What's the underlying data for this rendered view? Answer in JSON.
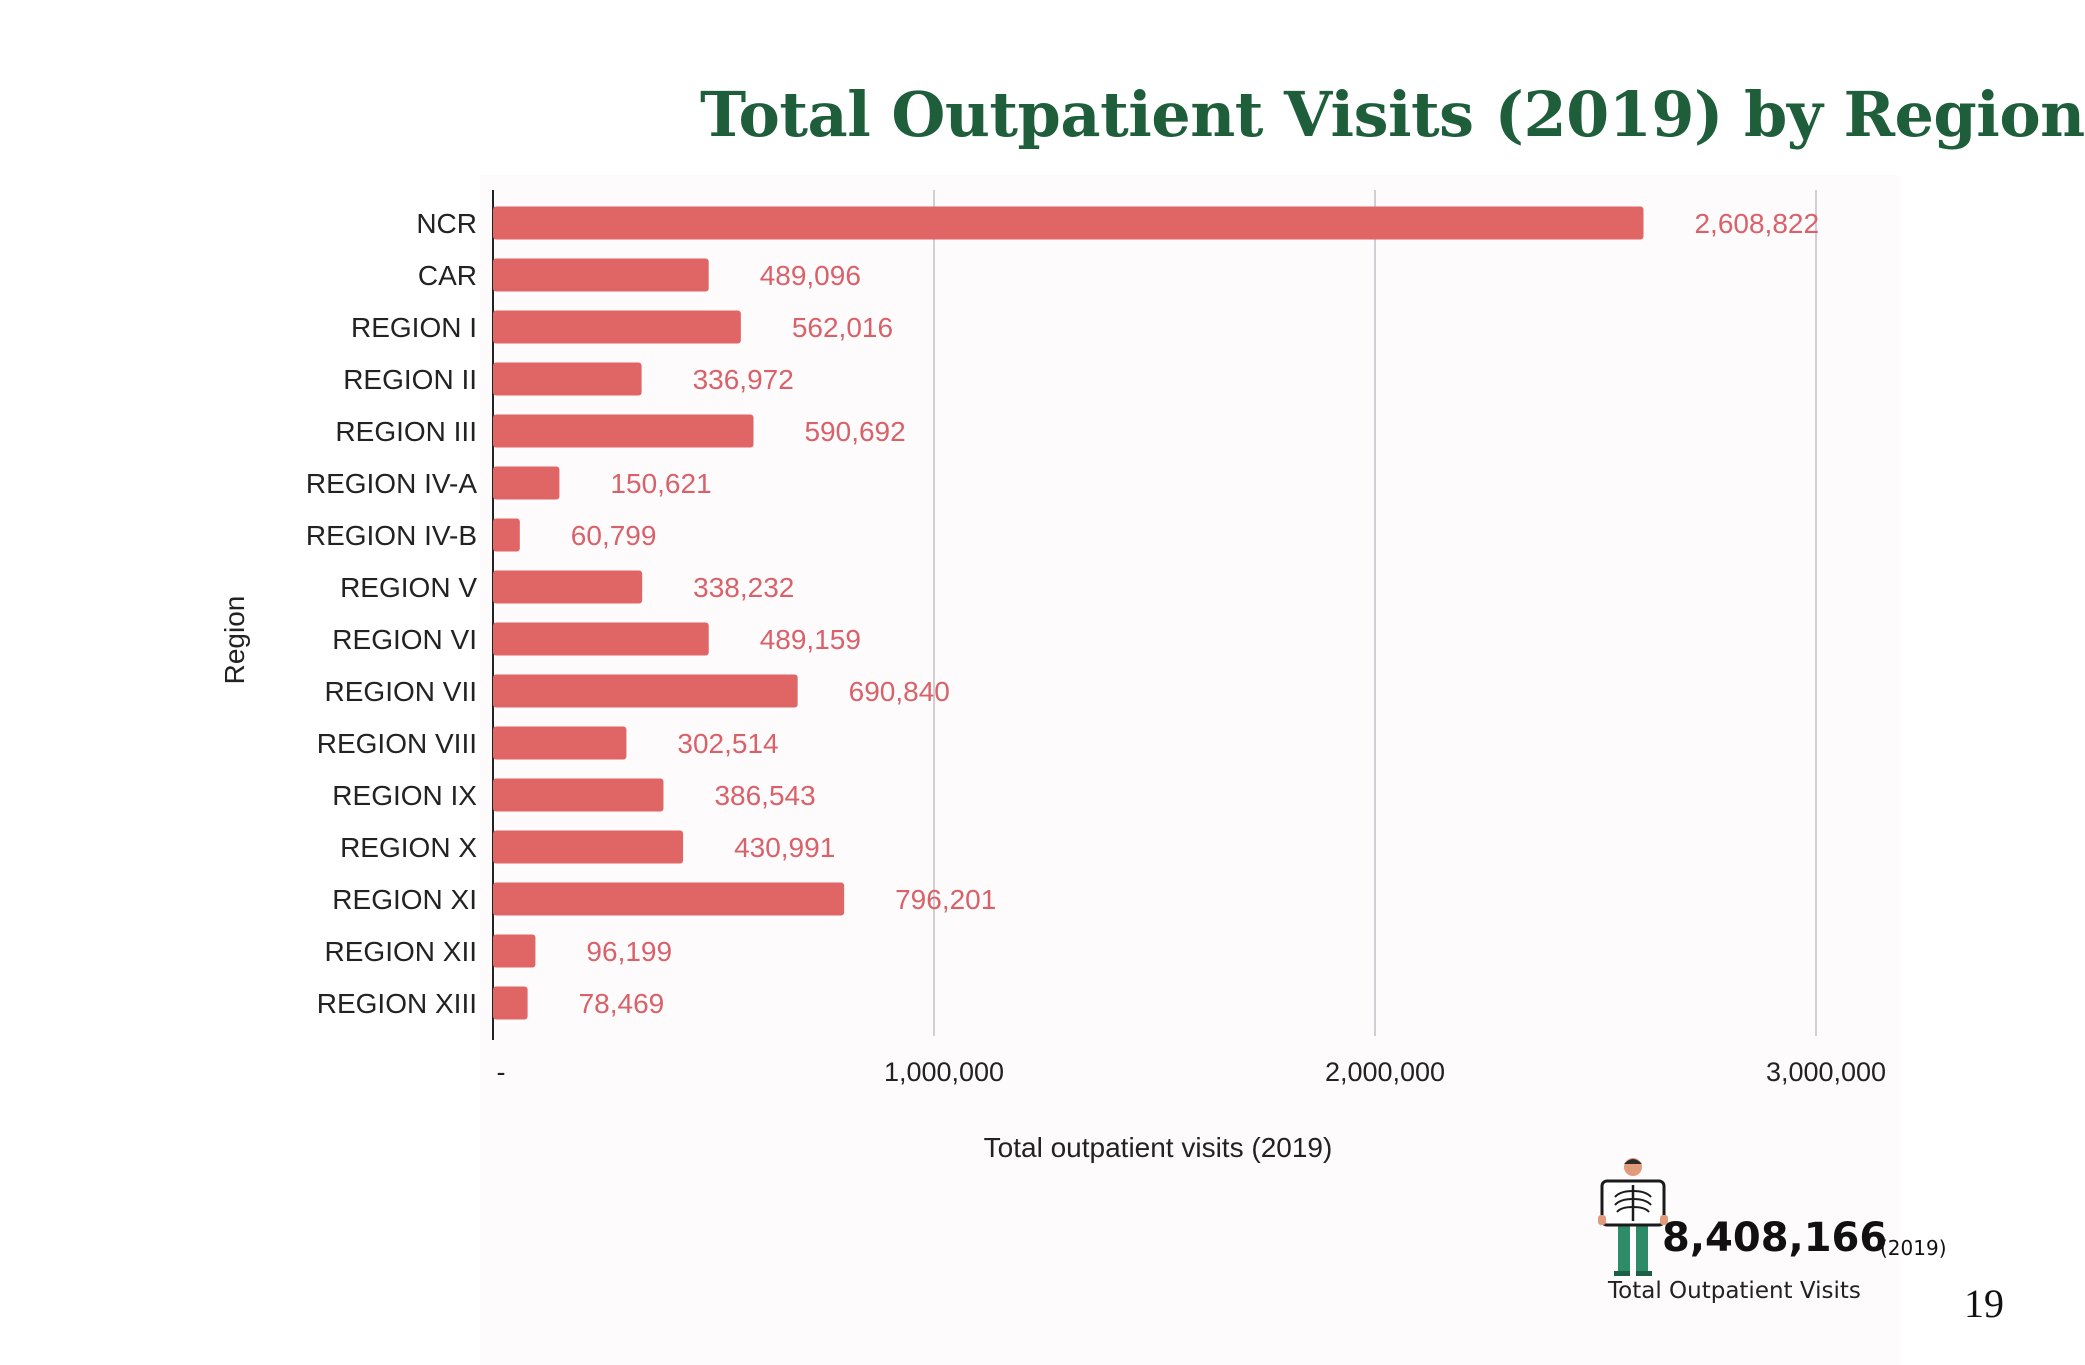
{
  "page": {
    "title": "Total Outpatient Visits (2019) by Region",
    "page_number": "19"
  },
  "summary": {
    "icon": "patient-xray-icon",
    "total_value": "8,408,166",
    "year": "(2019)",
    "label": "Total Outpatient Visits"
  },
  "colors": {
    "bar": "#e06666",
    "bar_label": "#d9626a",
    "title": "#1e5e3a",
    "grid": "#cfcfd4"
  },
  "chart_data": {
    "type": "bar",
    "orientation": "horizontal",
    "title": "Total Outpatient Visits (2019) by Region",
    "xlabel": "Total outpatient visits (2019)",
    "ylabel": "Region",
    "xlim": [
      0,
      3000000
    ],
    "x_ticks": [
      {
        "value": 0,
        "label": "-"
      },
      {
        "value": 1000000,
        "label": "1,000,000"
      },
      {
        "value": 2000000,
        "label": "2,000,000"
      },
      {
        "value": 3000000,
        "label": "3,000,000"
      }
    ],
    "grid": "vertical",
    "categories": [
      "NCR",
      "CAR",
      "REGION I",
      "REGION II",
      "REGION III",
      "REGION IV-A",
      "REGION IV-B",
      "REGION V",
      "REGION VI",
      "REGION VII",
      "REGION VIII",
      "REGION IX",
      "REGION X",
      "REGION XI",
      "REGION XII",
      "REGION XIII"
    ],
    "values": [
      2608822,
      489096,
      562016,
      336972,
      590692,
      150621,
      60799,
      338232,
      489159,
      690840,
      302514,
      386543,
      430991,
      796201,
      96199,
      78469
    ],
    "value_labels": [
      "2,608,822",
      "489,096",
      "562,016",
      "336,972",
      "590,692",
      "150,621",
      "60,799",
      "338,232",
      "489,159",
      "690,840",
      "302,514",
      "386,543",
      "430,991",
      "796,201",
      "96,199",
      "78,469"
    ]
  }
}
